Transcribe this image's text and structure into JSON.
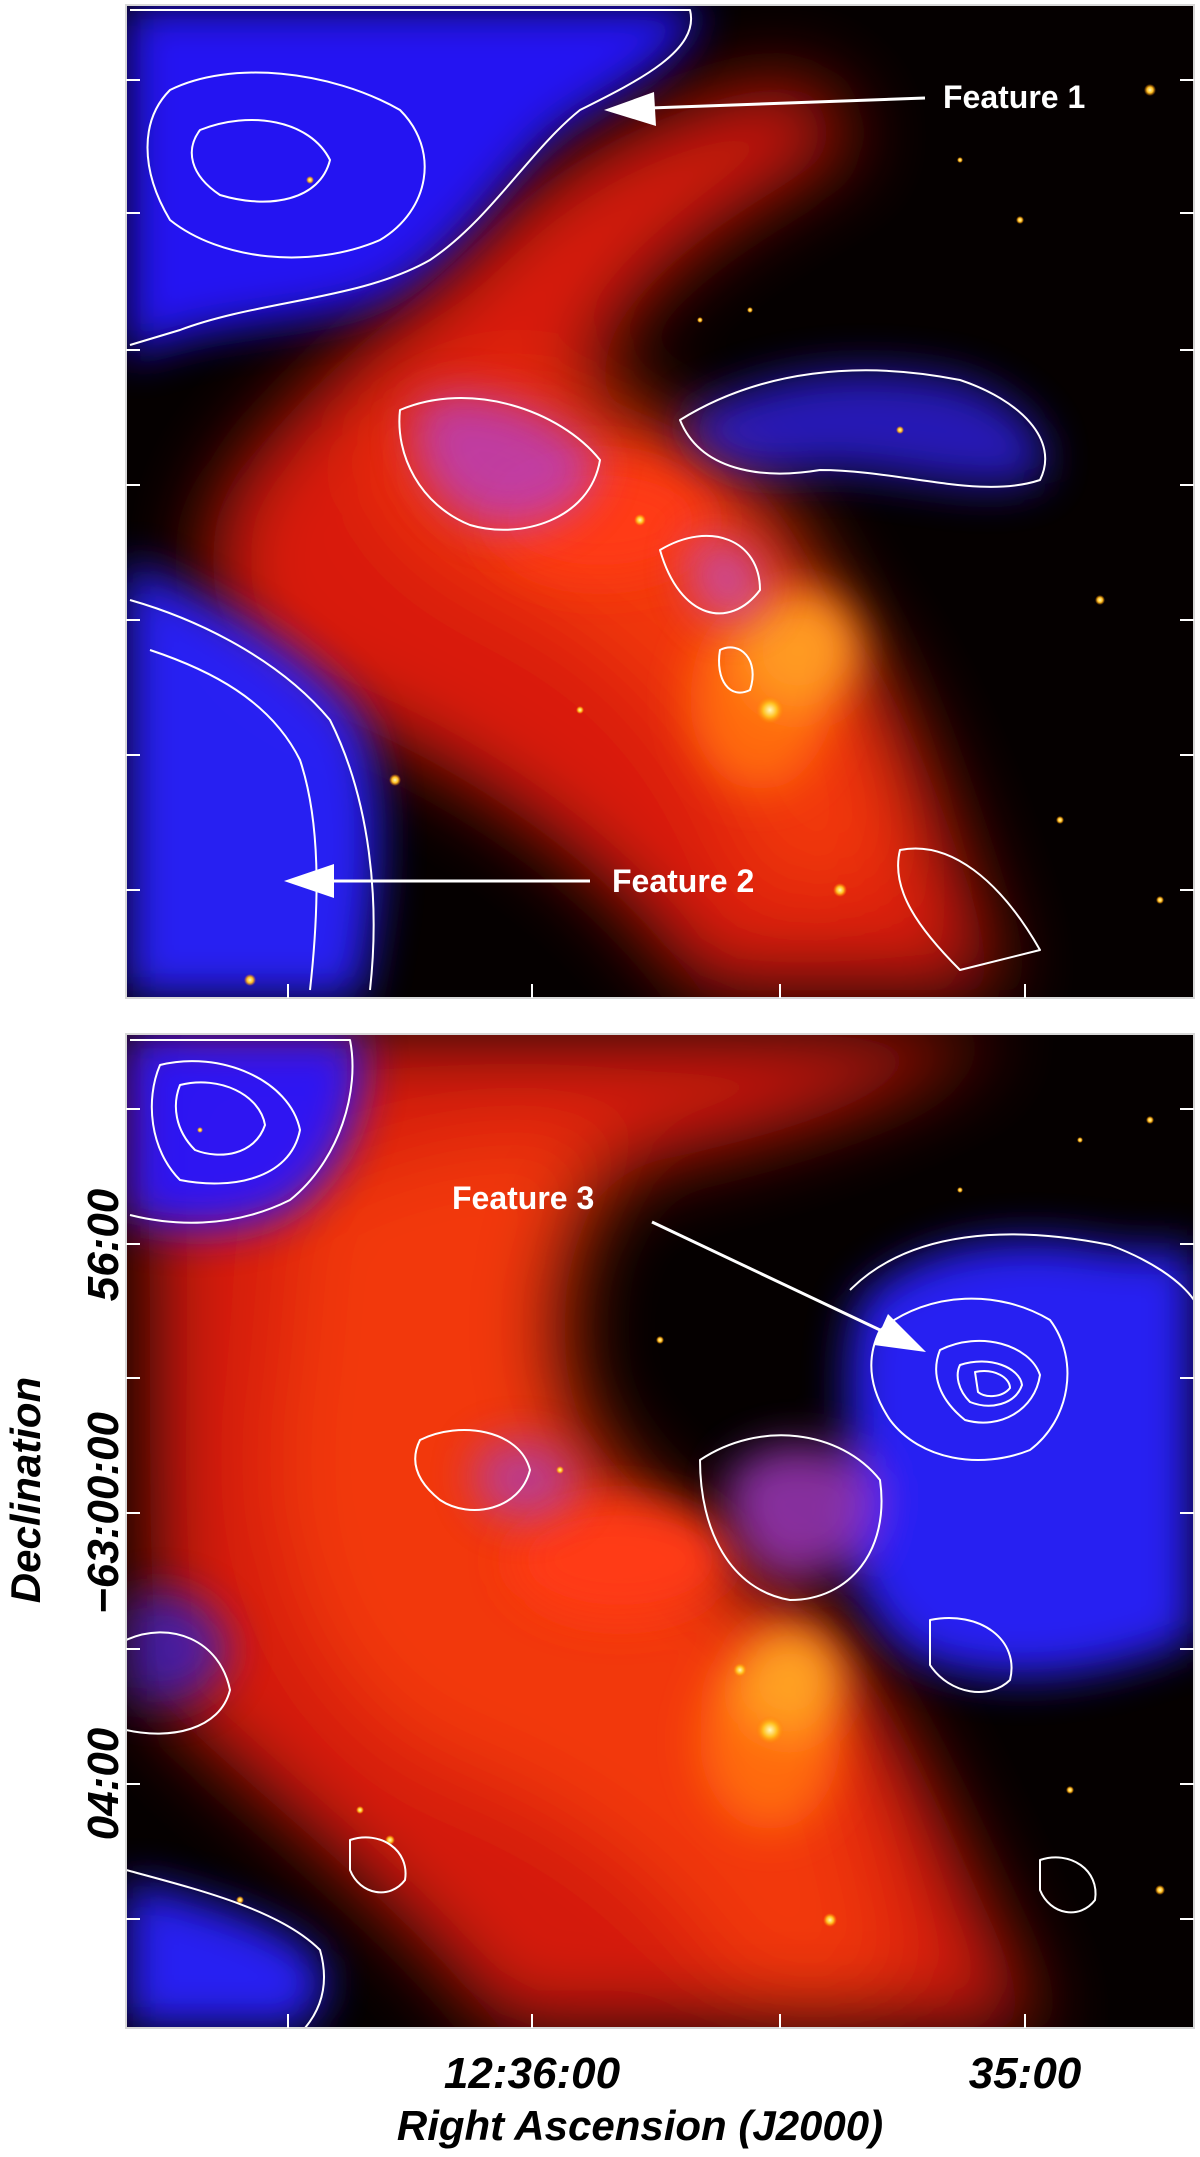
{
  "figure": {
    "top_panel": {
      "features": [
        {
          "label": "Feature 1"
        },
        {
          "label": "Feature 2"
        }
      ]
    },
    "bottom_panel": {
      "features": [
        {
          "label": "Feature 3"
        }
      ],
      "x_axis": {
        "label": "Right Ascension (J2000)",
        "tick_labels": [
          "12:36:00",
          "35:00"
        ]
      },
      "y_axis": {
        "label": "Declination",
        "tick_labels": [
          "56:00",
          "−63:00:00",
          "04:00"
        ]
      }
    },
    "colors": {
      "infrared_emission": "#ff2a0a",
      "contour_region": "#2a20ff",
      "contours": "#ffffff",
      "background": "#000000"
    }
  }
}
